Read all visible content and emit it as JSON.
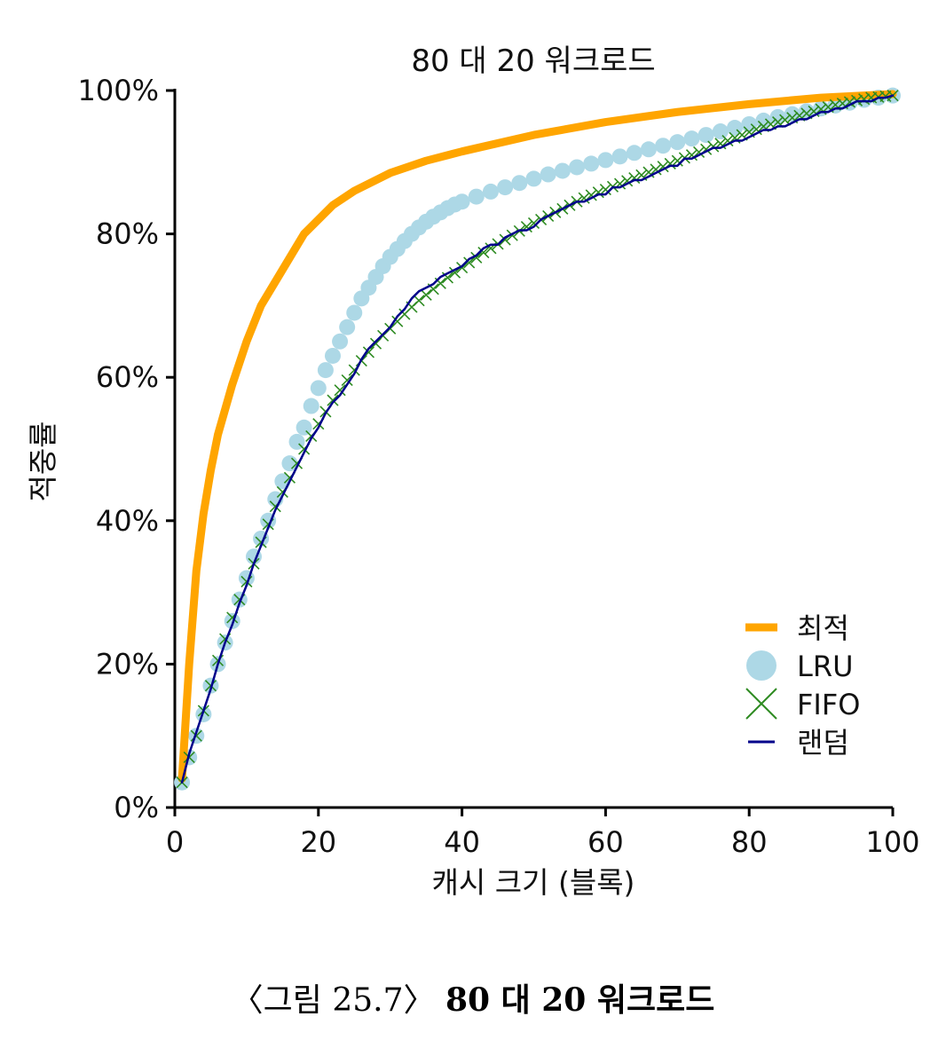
{
  "chart_data": {
    "type": "line",
    "title": "80 대 20 워크로드",
    "xlabel": "캐시 크기 (블록)",
    "ylabel": "적중률",
    "xlim": [
      0,
      100
    ],
    "ylim": [
      0,
      100
    ],
    "x_ticks": [
      "0",
      "20",
      "40",
      "60",
      "80",
      "100"
    ],
    "y_ticks": [
      "0%",
      "20%",
      "40%",
      "60%",
      "80%",
      "100%"
    ],
    "grid": false,
    "legend_position": "bottom-right",
    "series": [
      {
        "name": "최적",
        "style": "thick-line",
        "color": "#FFA500",
        "x": [
          1,
          2,
          3,
          4,
          5,
          6,
          8,
          10,
          12,
          15,
          18,
          20,
          22,
          25,
          30,
          35,
          40,
          50,
          60,
          70,
          80,
          90,
          100
        ],
        "y": [
          4,
          20,
          33,
          41,
          47,
          52,
          59,
          65,
          70,
          75,
          80,
          82,
          84,
          86,
          88.5,
          90.2,
          91.5,
          93.8,
          95.6,
          97,
          98.1,
          99,
          99.5
        ]
      },
      {
        "name": "LRU",
        "style": "circle-markers",
        "color": "#ADD8E6",
        "x": [
          1,
          2,
          3,
          4,
          5,
          6,
          7,
          8,
          9,
          10,
          11,
          12,
          13,
          14,
          15,
          16,
          17,
          18,
          19,
          20,
          21,
          22,
          23,
          24,
          25,
          26,
          27,
          28,
          29,
          30,
          31,
          32,
          33,
          34,
          35,
          36,
          37,
          38,
          39,
          40,
          42,
          44,
          46,
          48,
          50,
          52,
          54,
          56,
          58,
          60,
          62,
          64,
          66,
          68,
          70,
          72,
          74,
          76,
          78,
          80,
          82,
          84,
          86,
          88,
          90,
          92,
          94,
          96,
          98,
          100
        ],
        "y": [
          3.5,
          7,
          10,
          13,
          17,
          20,
          23,
          26,
          29,
          32,
          35,
          37.5,
          40,
          43,
          45.5,
          48,
          51,
          53,
          56,
          58.5,
          61,
          63,
          65,
          67,
          69,
          71,
          72.5,
          74,
          75.5,
          76.8,
          77.9,
          79,
          80,
          80.9,
          81.7,
          82.4,
          83,
          83.6,
          84.1,
          84.5,
          85.2,
          85.9,
          86.5,
          87.1,
          87.7,
          88.3,
          88.8,
          89.3,
          89.8,
          90.3,
          90.8,
          91.3,
          91.8,
          92.3,
          92.8,
          93.3,
          93.8,
          94.3,
          94.8,
          95.3,
          95.8,
          96.3,
          96.7,
          97.1,
          97.5,
          97.9,
          98.3,
          98.7,
          99,
          99.3
        ]
      },
      {
        "name": "FIFO",
        "style": "x-markers",
        "color": "#2E8B22",
        "x": [
          1,
          2,
          3,
          4,
          5,
          6,
          7,
          8,
          9,
          10,
          11,
          12,
          13,
          14,
          15,
          16,
          17,
          18,
          19,
          20,
          21,
          22,
          23,
          24,
          25,
          26,
          27,
          28,
          29,
          30,
          31,
          32,
          33,
          34,
          35,
          36,
          37,
          38,
          39,
          40,
          41,
          42,
          43,
          44,
          45,
          46,
          47,
          48,
          49,
          50,
          51,
          52,
          53,
          54,
          55,
          56,
          57,
          58,
          59,
          60,
          61,
          62,
          63,
          64,
          65,
          66,
          67,
          68,
          69,
          70,
          71,
          72,
          73,
          74,
          75,
          76,
          77,
          78,
          79,
          80,
          81,
          82,
          83,
          84,
          85,
          86,
          87,
          88,
          89,
          90,
          91,
          92,
          93,
          94,
          95,
          96,
          97,
          98,
          99,
          100
        ],
        "y": [
          3.5,
          7,
          10,
          13.5,
          17,
          20.5,
          23.5,
          26.5,
          29,
          31.5,
          34,
          37,
          39.5,
          42,
          44,
          46,
          48,
          50,
          51.8,
          53.5,
          55.2,
          56.8,
          58.2,
          59.6,
          61,
          62.3,
          63.5,
          64.7,
          65.8,
          66.8,
          67.8,
          68.8,
          69.8,
          70.7,
          71.5,
          72.3,
          73.1,
          73.9,
          74.6,
          75.3,
          76,
          76.7,
          77.4,
          78,
          78.6,
          79.2,
          79.8,
          80.4,
          81,
          81.5,
          82,
          82.5,
          83,
          83.5,
          84,
          84.5,
          85,
          85.4,
          85.8,
          86.2,
          86.6,
          87,
          87.4,
          87.8,
          88.2,
          88.6,
          89,
          89.4,
          89.8,
          90.2,
          90.6,
          91,
          91.4,
          91.8,
          92.2,
          92.6,
          93,
          93.4,
          93.8,
          94.2,
          94.6,
          95,
          95.3,
          95.6,
          95.9,
          96.2,
          96.5,
          96.8,
          97.1,
          97.4,
          97.7,
          98,
          98.2,
          98.4,
          98.6,
          98.8,
          99,
          99.1,
          99.2,
          99.3
        ]
      },
      {
        "name": "랜덤",
        "style": "thin-line",
        "color": "#00008B",
        "x": [
          1,
          2,
          3,
          4,
          5,
          6,
          7,
          8,
          9,
          10,
          11,
          12,
          13,
          14,
          15,
          16,
          17,
          18,
          19,
          20,
          21,
          22,
          23,
          24,
          25,
          26,
          27,
          28,
          29,
          30,
          31,
          32,
          33,
          34,
          35,
          36,
          37,
          38,
          39,
          40,
          41,
          42,
          43,
          44,
          45,
          46,
          47,
          48,
          49,
          50,
          51,
          52,
          53,
          54,
          55,
          56,
          57,
          58,
          59,
          60,
          61,
          62,
          63,
          64,
          65,
          66,
          67,
          68,
          69,
          70,
          71,
          72,
          73,
          74,
          75,
          76,
          77,
          78,
          79,
          80,
          81,
          82,
          83,
          84,
          85,
          86,
          87,
          88,
          89,
          90,
          91,
          92,
          93,
          94,
          95,
          96,
          97,
          98,
          99,
          100
        ],
        "y": [
          3.5,
          7.5,
          10.5,
          13.5,
          16.5,
          20,
          23,
          25.5,
          28.5,
          31,
          34,
          36.5,
          39,
          41.5,
          43.5,
          45.5,
          47.5,
          49.5,
          51.5,
          53,
          55,
          56.5,
          57.5,
          59,
          60.5,
          62.5,
          64,
          65,
          66,
          67,
          68.5,
          69.5,
          71,
          72,
          72.5,
          73,
          74,
          74.5,
          75,
          75.5,
          76.5,
          77,
          78,
          78.5,
          78.5,
          79.5,
          80,
          80.5,
          80.5,
          81,
          82,
          82.5,
          83,
          83.5,
          84,
          84.5,
          84.5,
          85,
          85.5,
          85.5,
          86.5,
          86.5,
          87,
          87.5,
          87.5,
          88,
          88.5,
          89,
          89.5,
          89.5,
          90.5,
          90.5,
          91,
          91.5,
          92,
          92,
          92.5,
          93,
          93,
          93.5,
          94,
          94.5,
          94.5,
          95,
          95,
          95.5,
          96,
          96,
          96.5,
          97,
          97,
          97.5,
          97.5,
          98,
          98.5,
          98.5,
          98.5,
          99,
          99,
          99.3
        ]
      }
    ]
  },
  "caption": {
    "figure_number": "〈그림 25.7〉",
    "title": "80 대 20 워크로드"
  }
}
